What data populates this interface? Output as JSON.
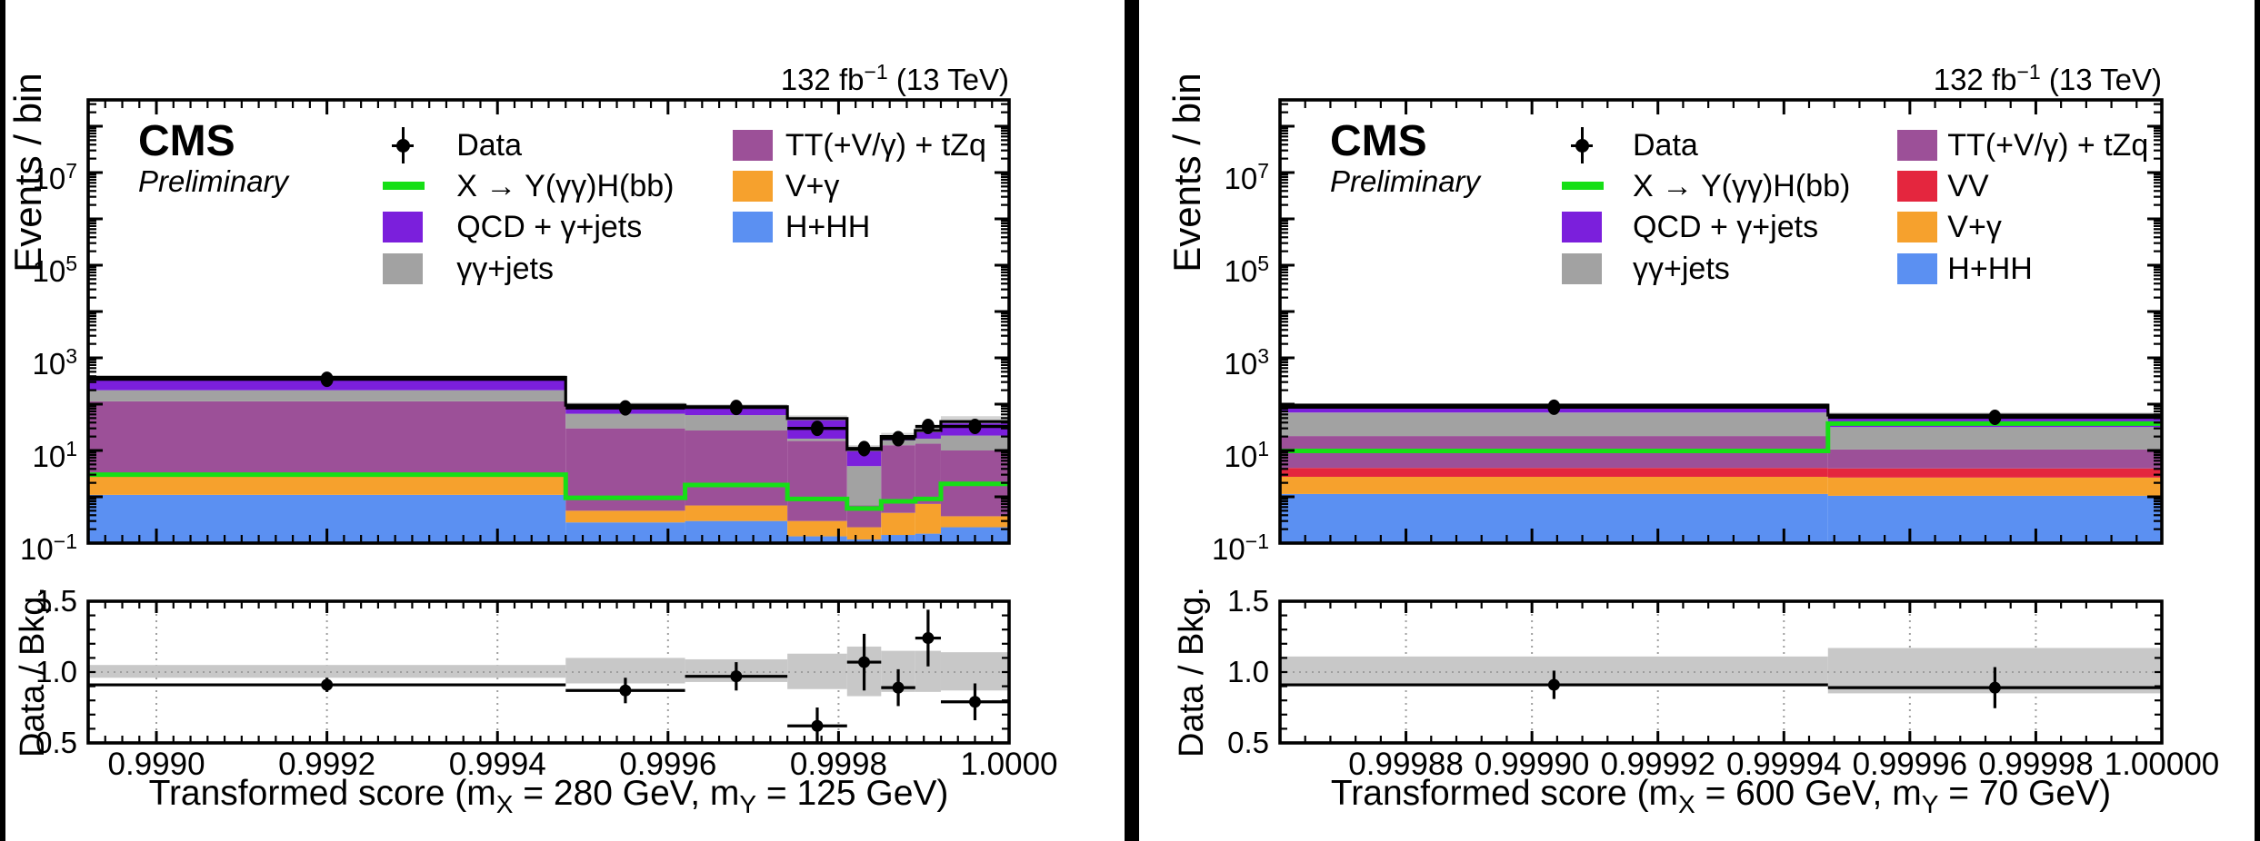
{
  "colors": {
    "qcd": "#7B1FDC",
    "ggjets": "#A2A2A2",
    "tt": "#9C5098",
    "vv": "#E4263E",
    "vgamma": "#F6A12D",
    "hhh": "#5B90F2",
    "signal": "#16DF16",
    "unc_band": "#D4D4D4",
    "ratio_band": "#C8C8C8",
    "data_marker": "#000000",
    "divider": "#000000"
  },
  "panels": [
    {
      "id": "left",
      "lumi": {
        "pre": "132 fb",
        "sup": "−1",
        "post": " (13 TeV)"
      },
      "cms": "CMS",
      "prelim": "Preliminary",
      "ylabel": "Events / bin",
      "ratio_ylabel": "Data / Bkg.",
      "xlabel": {
        "p1": "Transformed score (m",
        "s1": "X",
        "p2": " = 280 GeV, m",
        "s2": "Y",
        "p3": " = 125 GeV)"
      },
      "legend": {
        "col1": [
          {
            "type": "marker",
            "label": "Data"
          },
          {
            "type": "line",
            "color_key": "signal",
            "label": "X → Y(γγ)H(bb)"
          },
          {
            "type": "box",
            "color_key": "qcd",
            "label": "QCD + γ+jets"
          },
          {
            "type": "box",
            "color_key": "ggjets",
            "label": "γγ+jets"
          }
        ],
        "col2": [
          {
            "type": "box",
            "color_key": "tt",
            "label": "TT(+V/γ) + tZq"
          },
          {
            "type": "box",
            "color_key": "vgamma",
            "label": "V+γ"
          },
          {
            "type": "box",
            "color_key": "hhh",
            "label": "H+HH"
          }
        ]
      },
      "chart_data": {
        "type": "stacked_histogram_log_y_with_ratio",
        "x_range": [
          0.99892,
          1.0
        ],
        "x_ticks": [
          0.999,
          0.9992,
          0.9994,
          0.9996,
          0.9998,
          1.0
        ],
        "x_tick_labels": [
          "0.9990",
          "0.9992",
          "0.9994",
          "0.9996",
          "0.9998",
          "1.0000"
        ],
        "x_minor_divisions": 10,
        "y_scale": "log",
        "y_range": [
          0.1,
          370000000
        ],
        "y_ticks_labeled": [
          {
            "v": 10000000.0,
            "exp": "7"
          },
          {
            "v": 100000.0,
            "exp": "5"
          },
          {
            "v": 1000.0,
            "exp": "3"
          },
          {
            "v": 10,
            "exp": "1"
          },
          {
            "v": 0.1,
            "exp": "−1"
          }
        ],
        "bin_edges": [
          0.99892,
          0.99948,
          0.99962,
          0.99974,
          0.99981,
          0.99985,
          0.99989,
          0.99992,
          1.0
        ],
        "stack_order": [
          "hhh",
          "vgamma",
          "tt",
          "ggjets",
          "qcd"
        ],
        "stack_tops": {
          "hhh": [
            1.1,
            0.28,
            0.3,
            0.14,
            0.12,
            0.15,
            0.16,
            0.22
          ],
          "vgamma": [
            3.3,
            0.5,
            0.65,
            0.3,
            0.22,
            0.45,
            0.7,
            0.38
          ],
          "tt": [
            115,
            30,
            27,
            16,
            0.65,
            13,
            14,
            10
          ],
          "ggjets": [
            200,
            62,
            58,
            18,
            4.6,
            16.5,
            18,
            21
          ],
          "qcd": [
            380,
            95,
            88,
            49,
            10.5,
            20,
            27,
            42
          ]
        },
        "total": [
          380,
          95,
          88,
          49,
          10.5,
          20,
          27,
          42
        ],
        "unc_top": [
          420,
          108,
          100,
          57,
          13,
          24,
          33,
          55
        ],
        "signal": [
          3.0,
          0.95,
          1.8,
          0.9,
          0.56,
          0.8,
          0.9,
          1.9
        ],
        "data": {
          "y": [
            345,
            83,
            85,
            30,
            11,
            18,
            33,
            33
          ],
          "yerr": [
            19,
            9,
            9,
            6,
            3.5,
            4.5,
            6,
            6
          ]
        },
        "ratio": {
          "y_range": [
            0.5,
            1.5
          ],
          "y_ticks_labeled": [
            {
              "v": 0.5,
              "label": "0.5"
            },
            {
              "v": 1.0,
              "label": "1.0"
            },
            {
              "v": 1.5,
              "label": "1.5"
            }
          ],
          "y_minor_step": 0.1,
          "values": [
            0.91,
            0.87,
            0.97,
            0.62,
            1.07,
            0.89,
            1.24,
            0.79
          ],
          "yerr": [
            0.05,
            0.09,
            0.1,
            0.13,
            0.2,
            0.13,
            0.2,
            0.13
          ],
          "band_lo": [
            0.96,
            0.92,
            0.93,
            0.88,
            0.83,
            0.86,
            0.86,
            0.87
          ],
          "band_hi": [
            1.05,
            1.1,
            1.09,
            1.13,
            1.18,
            1.15,
            1.15,
            1.14
          ],
          "reference_line": 1.0
        }
      }
    },
    {
      "id": "right",
      "lumi": {
        "pre": "132 fb",
        "sup": "−1",
        "post": " (13 TeV)"
      },
      "cms": "CMS",
      "prelim": "Preliminary",
      "ylabel": "Events / bin",
      "ratio_ylabel": "Data / Bkg.",
      "xlabel": {
        "p1": "Transformed score (m",
        "s1": "X",
        "p2": " = 600 GeV, m",
        "s2": "Y",
        "p3": " = 70 GeV)"
      },
      "legend": {
        "col1": [
          {
            "type": "marker",
            "label": "Data"
          },
          {
            "type": "line",
            "color_key": "signal",
            "label": "X → Y(γγ)H(bb)"
          },
          {
            "type": "box",
            "color_key": "qcd",
            "label": "QCD + γ+jets"
          },
          {
            "type": "box",
            "color_key": "ggjets",
            "label": "γγ+jets"
          }
        ],
        "col2": [
          {
            "type": "box",
            "color_key": "tt",
            "label": "TT(+V/γ) + tZq"
          },
          {
            "type": "box",
            "color_key": "vv",
            "label": "VV"
          },
          {
            "type": "box",
            "color_key": "vgamma",
            "label": "V+γ"
          },
          {
            "type": "box",
            "color_key": "hhh",
            "label": "H+HH"
          }
        ]
      },
      "chart_data": {
        "type": "stacked_histogram_log_y_with_ratio",
        "x_range": [
          0.99986,
          1.0
        ],
        "x_ticks": [
          0.99988,
          0.9999,
          0.99992,
          0.99994,
          0.99996,
          0.99998,
          1.0
        ],
        "x_tick_labels": [
          "0.99988",
          "0.99990",
          "0.99992",
          "0.99994",
          "0.99996",
          "0.99998",
          "1.00000"
        ],
        "x_minor_divisions": 5,
        "y_scale": "log",
        "y_range": [
          0.1,
          370000000
        ],
        "y_ticks_labeled": [
          {
            "v": 10000000.0,
            "exp": "7"
          },
          {
            "v": 100000.0,
            "exp": "5"
          },
          {
            "v": 1000.0,
            "exp": "3"
          },
          {
            "v": 10,
            "exp": "1"
          },
          {
            "v": 0.1,
            "exp": "−1"
          }
        ],
        "bin_edges": [
          0.99986,
          0.999947,
          1.0
        ],
        "stack_order": [
          "hhh",
          "vgamma",
          "vv",
          "tt",
          "ggjets",
          "qcd"
        ],
        "stack_tops": {
          "hhh": [
            1.15,
            1.05
          ],
          "vgamma": [
            2.7,
            2.6
          ],
          "vv": [
            4.2,
            4.1
          ],
          "tt": [
            20.5,
            10.5
          ],
          "ggjets": [
            66,
            32
          ],
          "qcd": [
            95,
            58
          ]
        },
        "total": [
          95,
          58
        ],
        "unc_top": [
          104,
          66
        ],
        "signal": [
          9.8,
          38
        ],
        "data": {
          "y": [
            86,
            52
          ],
          "yerr": [
            9.3,
            7.2
          ]
        },
        "ratio": {
          "y_range": [
            0.5,
            1.5
          ],
          "y_ticks_labeled": [
            {
              "v": 0.5,
              "label": "0.5"
            },
            {
              "v": 1.0,
              "label": "1.0"
            },
            {
              "v": 1.5,
              "label": "1.5"
            }
          ],
          "y_minor_step": 0.1,
          "values": [
            0.91,
            0.89
          ],
          "yerr": [
            0.1,
            0.145
          ],
          "band_lo": [
            0.915,
            0.85
          ],
          "band_hi": [
            1.11,
            1.17
          ],
          "reference_line": 1.0
        }
      }
    }
  ]
}
